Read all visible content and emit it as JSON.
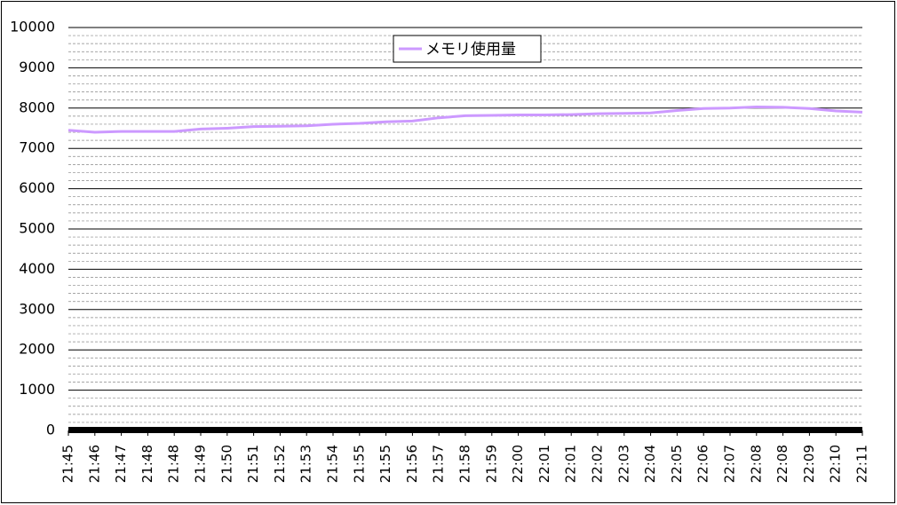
{
  "chart_data": {
    "type": "line",
    "categories": [
      "21:45",
      "21:46",
      "21:47",
      "21:48",
      "21:48",
      "21:49",
      "21:50",
      "21:51",
      "21:52",
      "21:53",
      "21:54",
      "21:55",
      "21:55",
      "21:56",
      "21:57",
      "21:58",
      "21:59",
      "22:00",
      "22:01",
      "22:01",
      "22:02",
      "22:03",
      "22:04",
      "22:05",
      "22:06",
      "22:07",
      "22:08",
      "22:08",
      "22:09",
      "22:10",
      "22:11"
    ],
    "series": [
      {
        "name": "メモリ使用量",
        "color": "#cc99ff",
        "values": [
          7450,
          7400,
          7420,
          7420,
          7420,
          7480,
          7500,
          7540,
          7550,
          7560,
          7600,
          7620,
          7660,
          7680,
          7760,
          7810,
          7820,
          7830,
          7830,
          7840,
          7860,
          7870,
          7880,
          7940,
          7990,
          8000,
          8030,
          8020,
          7990,
          7930,
          7900
        ]
      }
    ],
    "ylim": [
      0,
      10000
    ],
    "yticks": [
      0,
      1000,
      2000,
      3000,
      4000,
      5000,
      6000,
      7000,
      8000,
      9000,
      10000
    ],
    "grid": true,
    "minor_grid": true,
    "legend": "top-center"
  }
}
